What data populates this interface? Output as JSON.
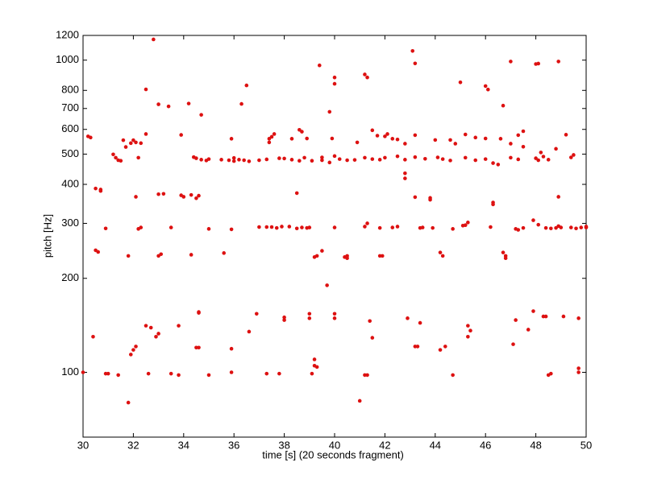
{
  "chart_data": {
    "type": "scatter",
    "x_label": "time [s] (20 seconds fragment)",
    "y_label": "pitch [Hz]",
    "xlim": [
      30,
      50
    ],
    "xticks": [
      30,
      32,
      34,
      36,
      38,
      40,
      42,
      44,
      46,
      48,
      50
    ],
    "ylim": [
      62,
      1200
    ],
    "yticks": [
      100,
      200,
      300,
      400,
      500,
      600,
      700,
      800,
      1000,
      1200
    ],
    "yscale": "log",
    "color": "#dd1111",
    "x": [
      30.0,
      30.9,
      31.0,
      31.4,
      32.6,
      33.5,
      33.8,
      35.0,
      35.9,
      37.3,
      37.8,
      39.1,
      39.3,
      41.2,
      41.3,
      44.7,
      48.5,
      48.6,
      49.7,
      49.7,
      31.8,
      41.0,
      30.4,
      31.9,
      32.0,
      32.1,
      32.9,
      33.0,
      34.5,
      34.6,
      35.9,
      36.6,
      39.2,
      39.2,
      43.2,
      43.3,
      44.2,
      44.4,
      45.3,
      47.1,
      47.7,
      41.5,
      32.5,
      32.7,
      33.8,
      34.6,
      34.6,
      36.9,
      38.0,
      38.0,
      39.0,
      39.0,
      40.0,
      40.0,
      41.4,
      42.9,
      43.4,
      45.3,
      45.4,
      47.2,
      47.9,
      48.3,
      48.4,
      49.1,
      49.7,
      39.7,
      30.5,
      30.6,
      31.8,
      33.0,
      33.1,
      34.3,
      35.6,
      39.2,
      39.3,
      39.5,
      40.4,
      40.5,
      40.5,
      41.8,
      41.9,
      44.2,
      44.3,
      46.7,
      46.8,
      46.8,
      30.9,
      32.2,
      32.3,
      33.5,
      35.0,
      35.9,
      37.0,
      37.3,
      37.5,
      37.7,
      37.9,
      38.2,
      38.5,
      38.7,
      38.9,
      39.0,
      40.0,
      41.2,
      41.3,
      41.8,
      42.3,
      42.5,
      43.4,
      43.5,
      43.9,
      44.7,
      45.1,
      45.3,
      45.2,
      46.2,
      47.2,
      47.3,
      47.5,
      47.9,
      48.1,
      48.4,
      48.6,
      48.9,
      49.0,
      49.4,
      49.6,
      49.8,
      50.0,
      50.0,
      48.8,
      30.5,
      30.7,
      30.7,
      32.1,
      33.0,
      33.2,
      33.9,
      34.0,
      34.3,
      34.6,
      34.5,
      38.5,
      42.8,
      42.8,
      43.2,
      43.8,
      43.8,
      46.3,
      46.3,
      48.9,
      31.2,
      31.3,
      31.5,
      31.4,
      32.2,
      34.4,
      34.5,
      34.7,
      34.9,
      35.0,
      35.5,
      35.8,
      36.0,
      36.2,
      36.4,
      36.6,
      36.0,
      37.0,
      37.3,
      37.8,
      38.0,
      38.3,
      38.6,
      38.8,
      39.1,
      39.5,
      39.5,
      39.8,
      40.0,
      40.2,
      40.5,
      40.8,
      41.2,
      41.5,
      41.8,
      42.0,
      42.5,
      42.8,
      43.2,
      43.6,
      44.1,
      44.3,
      44.6,
      45.2,
      45.6,
      46.0,
      46.3,
      46.5,
      47.0,
      47.3,
      48.0,
      48.1,
      48.3,
      48.5,
      49.4,
      49.5,
      30.2,
      30.3,
      31.6,
      31.7,
      31.9,
      32.0,
      32.1,
      32.3,
      32.5,
      33.9,
      35.9,
      37.4,
      37.5,
      37.6,
      37.4,
      38.3,
      38.6,
      38.7,
      38.9,
      39.9,
      40.9,
      41.5,
      41.7,
      42.0,
      42.1,
      42.3,
      42.5,
      42.8,
      43.2,
      44.0,
      44.6,
      44.8,
      45.2,
      45.6,
      46.0,
      46.6,
      47.0,
      47.3,
      47.5,
      48.2,
      48.8,
      49.2,
      47.5,
      32.5,
      33.0,
      33.4,
      34.2,
      34.7,
      32.8,
      36.3,
      36.5,
      39.4,
      39.8,
      40.0,
      40.0,
      41.2,
      41.3,
      43.1,
      43.2,
      45.0,
      46.0,
      46.1,
      46.7,
      47.0,
      48.0,
      48.1,
      48.9
    ],
    "values": [
      100,
      99,
      99,
      98,
      99,
      99,
      98,
      98,
      100,
      99,
      99,
      99,
      104,
      98,
      98,
      98,
      98,
      99,
      103,
      100,
      80,
      81,
      130,
      114,
      118,
      121,
      130,
      133,
      120,
      120,
      119,
      135,
      110,
      105,
      121,
      121,
      118,
      121,
      130,
      123,
      137,
      129,
      141,
      139,
      141,
      156,
      155,
      154,
      150,
      147,
      154,
      149,
      154,
      149,
      146,
      149,
      144,
      141,
      136,
      147,
      157,
      151,
      151,
      151,
      149,
      190,
      246,
      243,
      236,
      236,
      239,
      238,
      241,
      234,
      236,
      245,
      234,
      232,
      236,
      236,
      236,
      242,
      236,
      242,
      236,
      232,
      289,
      288,
      291,
      291,
      288,
      287,
      292,
      292,
      292,
      290,
      293,
      293,
      289,
      291,
      290,
      291,
      291,
      293,
      300,
      290,
      291,
      293,
      290,
      291,
      290,
      288,
      295,
      302,
      296,
      292,
      288,
      286,
      290,
      307,
      297,
      290,
      289,
      294,
      291,
      291,
      289,
      291,
      291,
      293,
      290,
      388,
      385,
      381,
      365,
      372,
      373,
      369,
      365,
      370,
      368,
      361,
      375,
      434,
      418,
      364,
      362,
      357,
      350,
      345,
      365,
      499,
      487,
      476,
      478,
      487,
      489,
      485,
      480,
      477,
      482,
      480,
      478,
      486,
      480,
      478,
      474,
      475,
      478,
      481,
      485,
      484,
      480,
      476,
      487,
      476,
      488,
      478,
      470,
      493,
      482,
      478,
      479,
      487,
      482,
      480,
      487,
      492,
      480,
      489,
      483,
      488,
      482,
      477,
      487,
      478,
      482,
      468,
      463,
      487,
      481,
      485,
      478,
      491,
      480,
      488,
      497,
      570,
      565,
      554,
      527,
      542,
      554,
      545,
      542,
      580,
      576,
      560,
      545,
      568,
      580,
      560,
      560,
      598,
      590,
      561,
      561,
      545,
      596,
      573,
      570,
      580,
      560,
      557,
      540,
      575,
      555,
      555,
      540,
      578,
      565,
      561,
      560,
      540,
      575,
      592,
      506,
      520,
      577,
      528,
      806,
      722,
      711,
      726,
      668,
      1165,
      724,
      830,
      962,
      683,
      880,
      840,
      900,
      880,
      1070,
      976,
      849,
      826,
      805,
      715,
      990,
      972,
      975,
      990
    ]
  }
}
